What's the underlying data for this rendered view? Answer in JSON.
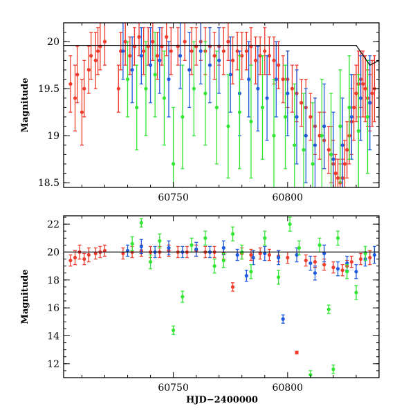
{
  "figure": {
    "xlabel": "HJD−2400000"
  },
  "colors": {
    "red": "#ef3b2c",
    "green": "#33e633",
    "blue": "#1f5bdc",
    "model": "#000000"
  },
  "chart_data": [
    {
      "type": "scatter",
      "title": "",
      "xlabel": "",
      "ylabel": "Magnitude",
      "xlim": [
        60702,
        60840
      ],
      "ylim": [
        20.2,
        18.45
      ],
      "y_inverted": true,
      "x_ticks": [
        60750,
        60800
      ],
      "y_ticks": [
        18.5,
        19,
        19.5,
        20
      ],
      "y_tick_labels": [
        "18.5",
        "19",
        "19.5",
        "20"
      ],
      "grid": false,
      "legend": "none",
      "series": [
        {
          "color": "red",
          "x": [
            60705,
            60707,
            60708,
            60710,
            60711,
            60713,
            60714,
            60716,
            60717,
            60718,
            60720,
            60726,
            60727,
            60729,
            60731,
            60733,
            60735,
            60737,
            60739,
            60741,
            60743,
            60745,
            60747,
            60749,
            60752,
            60755,
            60758,
            60760,
            60762,
            60764,
            60766,
            60768,
            60770,
            60772,
            60774,
            60776,
            60778,
            60780,
            60782,
            60784,
            60786,
            60788,
            60790,
            60792,
            60794,
            60796,
            60798,
            60800,
            60802,
            60804,
            60806,
            60808,
            60810,
            60812,
            60814,
            60816,
            60818,
            60819,
            60820,
            60821,
            60822,
            60823,
            60824,
            60825,
            60826,
            60827,
            60828,
            60829,
            60830,
            60831,
            60832,
            60833,
            60834,
            60835,
            60836,
            60837,
            60838
          ],
          "y": [
            19.55,
            19.4,
            19.65,
            19.25,
            19.5,
            19.7,
            19.85,
            19.8,
            19.9,
            19.95,
            20.0,
            19.5,
            19.9,
            20.0,
            19.85,
            19.95,
            20.05,
            19.9,
            19.95,
            20.0,
            19.85,
            19.95,
            20.05,
            19.9,
            19.95,
            20.0,
            19.9,
            19.95,
            20.0,
            19.9,
            19.95,
            19.85,
            19.95,
            19.9,
            20.0,
            19.8,
            19.9,
            19.85,
            19.9,
            19.95,
            19.8,
            19.85,
            19.9,
            19.85,
            19.8,
            19.75,
            19.6,
            19.6,
            19.5,
            19.45,
            19.35,
            19.3,
            19.2,
            19.1,
            19.0,
            18.95,
            18.85,
            18.8,
            18.7,
            18.6,
            18.55,
            18.5,
            18.55,
            18.7,
            18.85,
            19.0,
            19.15,
            19.3,
            19.45,
            19.55,
            19.6,
            19.55,
            19.5,
            19.4,
            19.35,
            19.45,
            19.5
          ],
          "err": [
            0.3,
            0.35,
            0.3,
            0.35,
            0.3,
            0.25,
            0.25,
            0.3,
            0.25,
            0.25,
            0.25,
            0.25,
            0.2,
            0.25,
            0.2,
            0.2,
            0.2,
            0.25,
            0.2,
            0.2,
            0.25,
            0.2,
            0.2,
            0.25,
            0.2,
            0.2,
            0.25,
            0.2,
            0.2,
            0.25,
            0.2,
            0.25,
            0.2,
            0.25,
            0.2,
            0.25,
            0.2,
            0.25,
            0.2,
            0.2,
            0.25,
            0.2,
            0.25,
            0.2,
            0.25,
            0.25,
            0.25,
            0.3,
            0.25,
            0.3,
            0.25,
            0.3,
            0.25,
            0.3,
            0.25,
            0.3,
            0.25,
            0.3,
            0.25,
            0.2,
            0.2,
            0.2,
            0.2,
            0.25,
            0.3,
            0.3,
            0.35,
            0.35,
            0.3,
            0.35,
            0.3,
            0.35,
            0.35,
            0.3,
            0.3,
            0.35,
            0.35
          ]
        },
        {
          "color": "blue",
          "x": [
            60728,
            60732,
            60736,
            60740,
            60744,
            60748,
            60753,
            60757,
            60762,
            60766,
            60770,
            60775,
            60779,
            60783,
            60787,
            60791,
            60795,
            60800,
            60804,
            60808,
            60812,
            60816,
            60820,
            60824,
            60828,
            60832,
            60836
          ],
          "y": [
            19.9,
            19.7,
            19.85,
            19.75,
            19.8,
            19.6,
            19.85,
            19.7,
            19.9,
            19.75,
            19.8,
            19.65,
            19.45,
            19.6,
            19.5,
            19.4,
            19.6,
            19.45,
            19.2,
            19.0,
            18.9,
            19.1,
            18.75,
            18.9,
            19.2,
            19.4,
            19.35
          ],
          "err": [
            0.3,
            0.35,
            0.3,
            0.4,
            0.35,
            0.4,
            0.35,
            0.4,
            0.35,
            0.4,
            0.35,
            0.4,
            0.45,
            0.4,
            0.45,
            0.45,
            0.4,
            0.45,
            0.5,
            0.5,
            0.5,
            0.45,
            0.5,
            0.5,
            0.45,
            0.45,
            0.5
          ]
        },
        {
          "color": "green",
          "x": [
            60730,
            60734,
            60738,
            60742,
            60746,
            60750,
            60754,
            60759,
            60764,
            60769,
            60774,
            60779,
            60784,
            60789,
            60794,
            60799,
            60803,
            60807,
            60811,
            60815,
            60819,
            60823,
            60827,
            60831,
            60835
          ],
          "y": [
            19.6,
            19.3,
            19.5,
            19.65,
            19.4,
            18.7,
            19.2,
            19.5,
            19.45,
            19.3,
            19.1,
            19.25,
            19.15,
            19.3,
            19.0,
            19.2,
            18.9,
            18.85,
            18.7,
            19.0,
            18.8,
            19.1,
            19.3,
            19.05,
            19.2
          ],
          "err": [
            0.4,
            0.45,
            0.5,
            0.45,
            0.5,
            0.6,
            0.55,
            0.5,
            0.55,
            0.6,
            0.55,
            0.6,
            0.6,
            0.55,
            0.6,
            0.55,
            0.65,
            0.6,
            0.65,
            0.6,
            0.65,
            0.6,
            0.55,
            0.6,
            0.6
          ]
        },
        {
          "name": "model",
          "color": "model",
          "x": [
            60702,
            60780,
            60830,
            60836,
            60840
          ],
          "y": [
            19.96,
            19.96,
            19.96,
            19.75,
            19.8
          ]
        }
      ]
    },
    {
      "type": "scatter",
      "title": "",
      "xlabel": "HJD−2400000",
      "ylabel": "Magnitude",
      "xlim": [
        60702,
        60840
      ],
      "ylim": [
        22.6,
        11.0
      ],
      "y_inverted": true,
      "x_ticks": [
        60750,
        60800
      ],
      "y_ticks": [
        12,
        14,
        16,
        18,
        20,
        22
      ],
      "y_tick_labels": [
        "12",
        "14",
        "16",
        "18",
        "20",
        "22"
      ],
      "grid": false,
      "legend": "none",
      "series": [
        {
          "color": "red",
          "x": [
            60705,
            60707,
            60709,
            60711,
            60713,
            60716,
            60718,
            60720,
            60728,
            60732,
            60736,
            60740,
            60744,
            60748,
            60752,
            60756,
            60760,
            60764,
            60768,
            60772,
            60776,
            60780,
            60784,
            60788,
            60792,
            60796,
            60800,
            60804,
            60808,
            60812,
            60816,
            60820,
            60824,
            60826,
            60828,
            60832,
            60836
          ],
          "y": [
            19.4,
            19.6,
            20.0,
            19.5,
            19.8,
            19.9,
            20.0,
            20.1,
            19.9,
            20.0,
            20.1,
            20.0,
            20.0,
            20.1,
            20.0,
            20.0,
            20.1,
            20.0,
            20.0,
            19.9,
            17.5,
            19.9,
            19.8,
            19.9,
            19.8,
            19.7,
            19.6,
            12.8,
            19.4,
            19.3,
            19.1,
            18.9,
            18.7,
            19.0,
            19.3,
            19.5,
            19.6
          ],
          "err": [
            0.4,
            0.5,
            0.5,
            0.4,
            0.5,
            0.4,
            0.4,
            0.4,
            0.4,
            0.4,
            0.4,
            0.4,
            0.4,
            0.4,
            0.4,
            0.4,
            0.4,
            0.4,
            0.4,
            0.4,
            0.3,
            0.4,
            0.4,
            0.4,
            0.4,
            0.4,
            0.4,
            0.1,
            0.4,
            0.4,
            0.4,
            0.4,
            0.4,
            0.4,
            0.4,
            0.4,
            0.5
          ]
        },
        {
          "color": "blue",
          "x": [
            60730,
            60736,
            60742,
            60748,
            60754,
            60760,
            60766,
            60772,
            60778,
            60782,
            60785,
            60790,
            60796,
            60798,
            60804,
            60810,
            60812,
            60816,
            60822,
            60826,
            60830,
            60834,
            60838
          ],
          "y": [
            20.1,
            20.4,
            20.0,
            20.3,
            20.0,
            20.2,
            20.0,
            20.3,
            19.8,
            18.3,
            19.6,
            19.9,
            19.6,
            15.2,
            19.8,
            19.2,
            18.5,
            19.9,
            18.8,
            19.2,
            18.6,
            19.5,
            19.8
          ],
          "err": [
            0.4,
            0.5,
            0.4,
            0.5,
            0.4,
            0.5,
            0.4,
            0.5,
            0.4,
            0.4,
            0.5,
            0.5,
            0.5,
            0.3,
            0.5,
            0.5,
            0.5,
            0.6,
            0.5,
            0.5,
            0.5,
            0.5,
            0.6
          ]
        },
        {
          "color": "green",
          "x": [
            60732,
            60736,
            60740,
            60744,
            60750,
            60754,
            60758,
            60764,
            60768,
            60772,
            60776,
            60780,
            60784,
            60790,
            60796,
            60801,
            60805,
            60810,
            60814,
            60818,
            60820,
            60822,
            60826,
            60830,
            60834
          ],
          "y": [
            20.6,
            22.1,
            19.3,
            20.8,
            14.4,
            16.8,
            20.5,
            21.0,
            19.0,
            19.4,
            21.3,
            20.0,
            18.6,
            21.0,
            18.2,
            22.0,
            20.3,
            11.2,
            20.5,
            15.9,
            11.6,
            21.0,
            18.6,
            17.1,
            19.9
          ],
          "err": [
            0.5,
            0.3,
            0.5,
            0.5,
            0.3,
            0.4,
            0.5,
            0.5,
            0.5,
            0.5,
            0.5,
            0.5,
            0.5,
            0.5,
            0.5,
            0.5,
            0.5,
            0.3,
            0.5,
            0.3,
            0.3,
            0.5,
            0.5,
            0.5,
            0.5
          ]
        },
        {
          "name": "model",
          "color": "model",
          "x": [
            60702,
            60840
          ],
          "y": [
            20.0,
            20.0
          ]
        }
      ]
    }
  ]
}
